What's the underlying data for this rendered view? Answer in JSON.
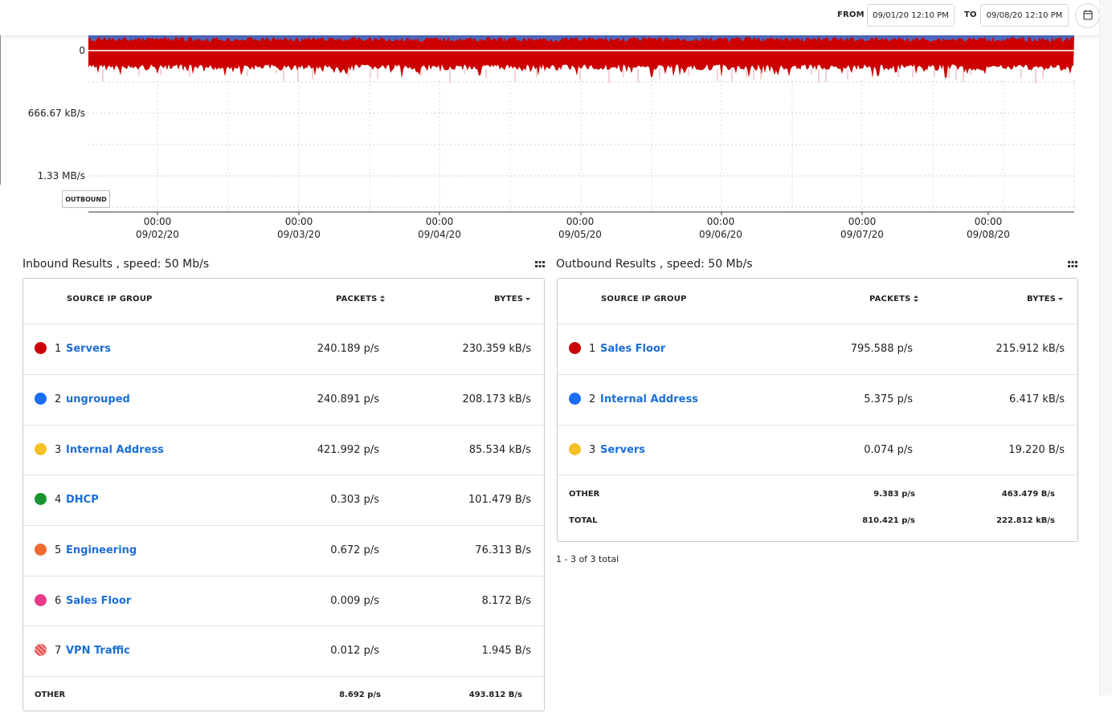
{
  "toolbar": {
    "from_label": "FROM",
    "from_value": "09/01/20 12:10 PM",
    "to_label": "TO",
    "to_value": "09/08/20 12:10 PM",
    "calendar_icon": "calendar-icon"
  },
  "chart_data": {
    "type": "area",
    "series": [
      {
        "name": "",
        "color": "#cc0000"
      },
      {
        "name": "",
        "color": "#3b7de0"
      }
    ],
    "y_tick_labels": [
      "0",
      "666.67 kB/s",
      "1.33 MB/s"
    ],
    "x_tick_labels": [
      {
        "time": "00:00",
        "date": "09/02/20"
      },
      {
        "time": "00:00",
        "date": "09/03/20"
      },
      {
        "time": "00:00",
        "date": "09/04/20"
      },
      {
        "time": "00:00",
        "date": "09/05/20"
      },
      {
        "time": "00:00",
        "date": "09/06/20"
      },
      {
        "time": "00:00",
        "date": "09/07/20"
      },
      {
        "time": "00:00",
        "date": "09/08/20"
      }
    ],
    "direction_label": "OUTBOUND",
    "grid": true
  },
  "inbound": {
    "title": "Inbound Results , speed: 50 Mb/s",
    "headers": {
      "group": "SOURCE IP GROUP",
      "packets": "PACKETS",
      "bytes": "BYTES"
    },
    "rows": [
      {
        "rank": "1",
        "name": "Servers",
        "packets": "240.189 p/s",
        "bytes": "230.359 kB/s",
        "color": "#cc0000"
      },
      {
        "rank": "2",
        "name": "ungrouped",
        "packets": "240.891 p/s",
        "bytes": "208.173 kB/s",
        "color": "#1a6ef5"
      },
      {
        "rank": "3",
        "name": "Internal Address",
        "packets": "421.992 p/s",
        "bytes": "85.534 kB/s",
        "color": "#f6c026"
      },
      {
        "rank": "4",
        "name": "DHCP",
        "packets": "0.303 p/s",
        "bytes": "101.479 B/s",
        "color": "#18952e"
      },
      {
        "rank": "5",
        "name": "Engineering",
        "packets": "0.672 p/s",
        "bytes": "76.313 B/s",
        "color": "#ee6a2e"
      },
      {
        "rank": "6",
        "name": "Sales Floor",
        "packets": "0.009 p/s",
        "bytes": "8.172 B/s",
        "color": "#e83a8c"
      },
      {
        "rank": "7",
        "name": "VPN Traffic",
        "packets": "0.012 p/s",
        "bytes": "1.945 B/s",
        "color": "#e94a4a"
      }
    ],
    "other_label": "OTHER",
    "other_packets": "8.692 p/s",
    "other_bytes": "493.812 B/s"
  },
  "outbound": {
    "title": "Outbound Results , speed: 50 Mb/s",
    "headers": {
      "group": "SOURCE IP GROUP",
      "packets": "PACKETS",
      "bytes": "BYTES"
    },
    "rows": [
      {
        "rank": "1",
        "name": "Sales Floor",
        "packets": "795.588 p/s",
        "bytes": "215.912 kB/s",
        "color": "#cc0000"
      },
      {
        "rank": "2",
        "name": "Internal Address",
        "packets": "5.375 p/s",
        "bytes": "6.417 kB/s",
        "color": "#1a6ef5"
      },
      {
        "rank": "3",
        "name": "Servers",
        "packets": "0.074 p/s",
        "bytes": "19.220 B/s",
        "color": "#f6c026"
      }
    ],
    "other_label": "OTHER",
    "other_packets": "9.383 p/s",
    "other_bytes": "463.479 B/s",
    "total_label": "TOTAL",
    "total_packets": "810.421 p/s",
    "total_bytes": "222.812 kB/s",
    "count_text": "1 - 3 of 3 total"
  }
}
